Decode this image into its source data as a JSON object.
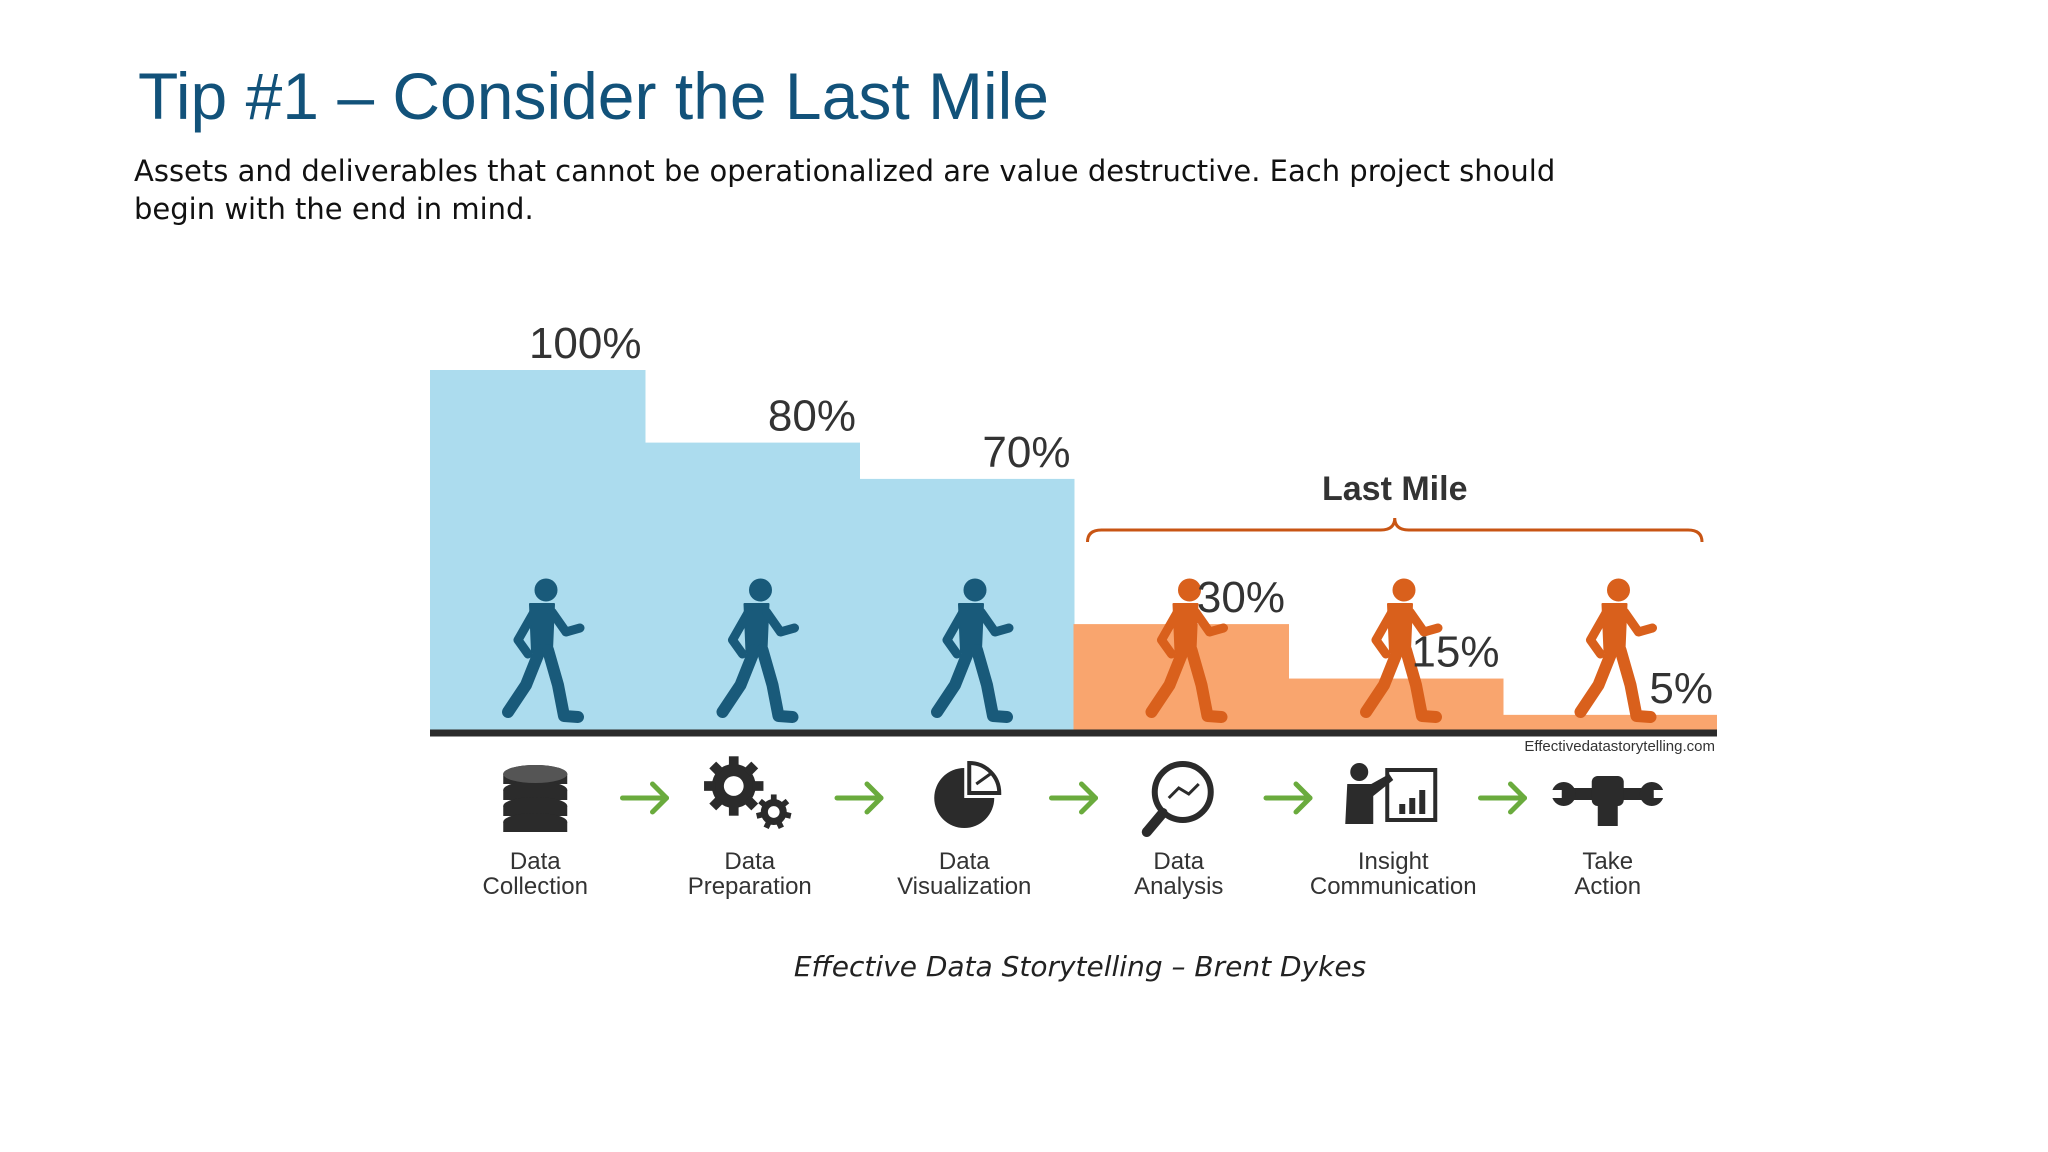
{
  "slide": {
    "title": "Tip #1 – Consider the Last Mile",
    "subtitle": "Assets and deliverables that cannot be operationalized are value destructive.  Each project should begin with the end in mind.",
    "caption": "Effective Data Storytelling – Brent Dykes"
  },
  "chart_data": {
    "type": "bar",
    "categories": [
      "Data Collection",
      "Data Preparation",
      "Data Visualization",
      "Data Analysis",
      "Insight Communication",
      "Take Action"
    ],
    "category_lines": [
      [
        "Data",
        "Collection"
      ],
      [
        "Data",
        "Preparation"
      ],
      [
        "Data",
        "Visualization"
      ],
      [
        "Data",
        "Analysis"
      ],
      [
        "Insight",
        "Communication"
      ],
      [
        "Take",
        "Action"
      ]
    ],
    "values": [
      100,
      80,
      70,
      30,
      15,
      5
    ],
    "value_labels": [
      "100%",
      "80%",
      "70%",
      "30%",
      "15%",
      "5%"
    ],
    "ylim": [
      0,
      100
    ],
    "bracket_label": "Last Mile",
    "bracket_start_index": 3,
    "watermark": "Effectivedatastorytelling.com",
    "colors": {
      "blue_fill": "#acdcee",
      "blue_figure": "#195a7a",
      "orange_fill": "#f9a56e",
      "orange_figure": "#d9601c",
      "bracket": "#c85514",
      "arrow": "#6aab3d",
      "icon": "#2b2b2b",
      "baseline": "#2b2b2b"
    },
    "icons": [
      "database-icon",
      "gears-icon",
      "pie-chart-icon",
      "magnifier-icon",
      "presenter-icon",
      "wrench-fist-icon"
    ]
  }
}
